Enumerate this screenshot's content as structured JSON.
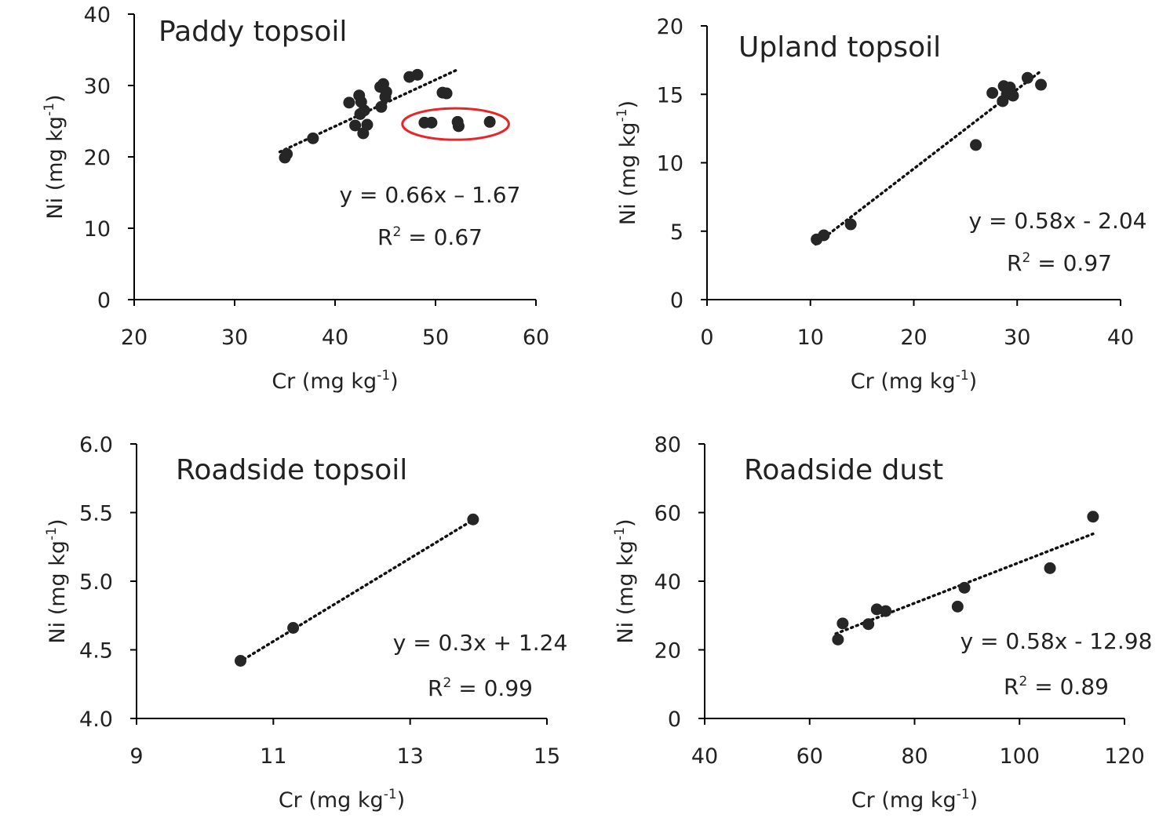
{
  "chart_data": [
    {
      "type": "scatter",
      "title": "Paddy topsoil",
      "xlabel": "Cr (mg kg-1)",
      "ylabel": "Ni (mg kg-1)",
      "xlim": [
        20,
        60
      ],
      "ylim": [
        0,
        40
      ],
      "xticks": [
        "20",
        "30",
        "40",
        "50",
        "60"
      ],
      "yticks": [
        "0",
        "10",
        "20",
        "30",
        "40"
      ],
      "equation": "y  =  0.66x – 1.67",
      "r2_value": "0.67",
      "trendline": {
        "x1": 34.5,
        "y1": 20.7,
        "x2": 52,
        "y2": 32.1
      },
      "outlier_group": {
        "cx": 52,
        "cy": 24.6,
        "rx": 5.3,
        "ry": 2.2
      },
      "points": [
        {
          "x": 35.0,
          "y": 19.9
        },
        {
          "x": 35.2,
          "y": 20.4
        },
        {
          "x": 37.8,
          "y": 22.6
        },
        {
          "x": 41.4,
          "y": 27.6
        },
        {
          "x": 42.0,
          "y": 24.4
        },
        {
          "x": 42.4,
          "y": 28.6
        },
        {
          "x": 42.5,
          "y": 26.0
        },
        {
          "x": 42.6,
          "y": 27.7
        },
        {
          "x": 42.8,
          "y": 23.3
        },
        {
          "x": 42.9,
          "y": 26.5
        },
        {
          "x": 43.2,
          "y": 24.5
        },
        {
          "x": 44.5,
          "y": 29.8
        },
        {
          "x": 44.6,
          "y": 27.0
        },
        {
          "x": 44.8,
          "y": 30.2
        },
        {
          "x": 45.0,
          "y": 28.4
        },
        {
          "x": 45.1,
          "y": 29.1
        },
        {
          "x": 47.4,
          "y": 31.2
        },
        {
          "x": 48.2,
          "y": 31.5
        },
        {
          "x": 48.9,
          "y": 24.8
        },
        {
          "x": 49.6,
          "y": 24.8
        },
        {
          "x": 50.7,
          "y": 29.0
        },
        {
          "x": 51.1,
          "y": 28.9
        },
        {
          "x": 52.2,
          "y": 24.9
        },
        {
          "x": 52.3,
          "y": 24.3
        },
        {
          "x": 55.4,
          "y": 24.9
        }
      ]
    },
    {
      "type": "scatter",
      "title": "Upland topsoil",
      "xlabel": "Cr (mg kg-1)",
      "ylabel": "Ni (mg kg-1)",
      "xlim": [
        0,
        40
      ],
      "ylim": [
        0,
        20
      ],
      "xticks": [
        "0",
        "10",
        "20",
        "30",
        "40"
      ],
      "yticks": [
        "0",
        "5",
        "10",
        "15",
        "20"
      ],
      "equation": "y  =  0.58x  -  2.04",
      "r2_value": "0.97",
      "trendline": {
        "x1": 10.5,
        "y1": 4.05,
        "x2": 32.3,
        "y2": 16.7
      },
      "points": [
        {
          "x": 10.6,
          "y": 4.4
        },
        {
          "x": 11.3,
          "y": 4.7
        },
        {
          "x": 13.9,
          "y": 5.5
        },
        {
          "x": 26.0,
          "y": 11.3
        },
        {
          "x": 27.6,
          "y": 15.1
        },
        {
          "x": 28.6,
          "y": 14.5
        },
        {
          "x": 28.7,
          "y": 15.6
        },
        {
          "x": 29.0,
          "y": 15.0
        },
        {
          "x": 29.3,
          "y": 15.5
        },
        {
          "x": 29.6,
          "y": 14.9
        },
        {
          "x": 31.0,
          "y": 16.2
        },
        {
          "x": 32.3,
          "y": 15.7
        }
      ]
    },
    {
      "type": "scatter",
      "title": "Roadside topsoil",
      "xlabel": "Cr (mg kg-1)",
      "ylabel": "Ni (mg kg-1)",
      "xlim": [
        9,
        15
      ],
      "ylim": [
        4.0,
        6.0
      ],
      "xticks": [
        "9",
        "11",
        "13",
        "15"
      ],
      "yticks": [
        "4.0",
        "4.5",
        "5.0",
        "5.5",
        "6.0"
      ],
      "equation": "y  =  0.3x  +  1.24",
      "r2_value": "0.99",
      "trendline": {
        "x1": 10.5,
        "y1": 4.41,
        "x2": 13.9,
        "y2": 5.44
      },
      "points": [
        {
          "x": 10.52,
          "y": 4.42
        },
        {
          "x": 11.29,
          "y": 4.66
        },
        {
          "x": 13.92,
          "y": 5.45
        }
      ]
    },
    {
      "type": "scatter",
      "title": "Roadside dust",
      "xlabel": "Cr (mg kg-1)",
      "ylabel": "Ni (mg kg-1)",
      "xlim": [
        40,
        120
      ],
      "ylim": [
        0,
        80
      ],
      "xticks": [
        "40",
        "60",
        "80",
        "100",
        "120"
      ],
      "yticks": [
        "0",
        "20",
        "40",
        "60",
        "80"
      ],
      "equation": "y  =  0.58x  -  12.98",
      "r2_value": "0.89",
      "trendline": {
        "x1": 65,
        "y1": 24.7,
        "x2": 114,
        "y2": 53.8
      },
      "points": [
        {
          "x": 65.4,
          "y": 23.0
        },
        {
          "x": 66.3,
          "y": 27.7
        },
        {
          "x": 71.2,
          "y": 27.5
        },
        {
          "x": 72.8,
          "y": 31.8
        },
        {
          "x": 74.5,
          "y": 31.3
        },
        {
          "x": 88.2,
          "y": 32.6
        },
        {
          "x": 89.5,
          "y": 38.1
        },
        {
          "x": 105.8,
          "y": 43.8
        },
        {
          "x": 114.0,
          "y": 58.8
        }
      ]
    }
  ]
}
